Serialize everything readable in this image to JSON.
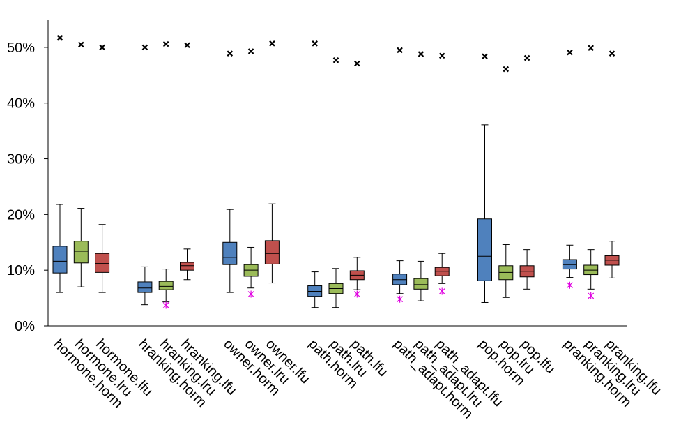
{
  "chart_data": {
    "type": "boxplot",
    "title": "",
    "xlabel": "",
    "ylabel": "",
    "ylim": [
      0,
      55
    ],
    "yticks": [
      "0%",
      "10%",
      "20%",
      "30%",
      "40%",
      "50%"
    ],
    "grid": false,
    "legend": "none",
    "series_colors": {
      "horm": "#4f81bd",
      "lru": "#9bbb59",
      "lfu": "#c0504d",
      "max_marker": "#000000",
      "outlier_marker": "#e000e0"
    },
    "categories": [
      {
        "label": "hormone.horm",
        "color_key": "horm",
        "min": 6.0,
        "q1": 9.5,
        "median": 11.6,
        "q3": 14.3,
        "max": 21.8,
        "max_marker": 51.7,
        "outlier": null
      },
      {
        "label": "hormone.lru",
        "color_key": "lru",
        "min": 7.0,
        "q1": 11.3,
        "median": 13.4,
        "q3": 15.2,
        "max": 21.1,
        "max_marker": 50.5,
        "outlier": null
      },
      {
        "label": "hormone.lfu",
        "color_key": "lfu",
        "min": 6.0,
        "q1": 9.6,
        "median": 11.2,
        "q3": 13.0,
        "max": 18.2,
        "max_marker": 50.0,
        "outlier": null
      },
      {
        "label": "hranking.horm",
        "color_key": "horm",
        "min": 3.8,
        "q1": 6.0,
        "median": 6.8,
        "q3": 7.9,
        "max": 10.6,
        "max_marker": 50.0,
        "outlier": null
      },
      {
        "label": "hranking.lru",
        "color_key": "lru",
        "min": 4.3,
        "q1": 6.5,
        "median": 7.1,
        "q3": 8.0,
        "max": 10.2,
        "max_marker": 50.6,
        "outlier": 3.7
      },
      {
        "label": "hranking.lfu",
        "color_key": "lfu",
        "min": 8.3,
        "q1": 10.0,
        "median": 10.8,
        "q3": 11.4,
        "max": 13.8,
        "max_marker": 50.4,
        "outlier": null
      },
      {
        "label": "owner.horm",
        "color_key": "horm",
        "min": 6.0,
        "q1": 11.0,
        "median": 12.3,
        "q3": 15.0,
        "max": 20.9,
        "max_marker": 48.9,
        "outlier": null
      },
      {
        "label": "owner.lru",
        "color_key": "lru",
        "min": 6.8,
        "q1": 8.9,
        "median": 10.0,
        "q3": 11.0,
        "max": 14.1,
        "max_marker": 49.3,
        "outlier": 5.7
      },
      {
        "label": "owner.lfu",
        "color_key": "lfu",
        "min": 7.7,
        "q1": 11.1,
        "median": 13.0,
        "q3": 15.3,
        "max": 21.9,
        "max_marker": 50.7,
        "outlier": null
      },
      {
        "label": "path.horm",
        "color_key": "horm",
        "min": 3.3,
        "q1": 5.3,
        "median": 6.2,
        "q3": 7.2,
        "max": 9.7,
        "max_marker": 50.7,
        "outlier": null
      },
      {
        "label": "path.lru",
        "color_key": "lru",
        "min": 3.3,
        "q1": 5.8,
        "median": 6.7,
        "q3": 7.6,
        "max": 10.3,
        "max_marker": 47.7,
        "outlier": null
      },
      {
        "label": "path.lfu",
        "color_key": "lfu",
        "min": 6.5,
        "q1": 8.3,
        "median": 9.1,
        "q3": 9.9,
        "max": 12.3,
        "max_marker": 47.1,
        "outlier": 5.7
      },
      {
        "label": "path_adapt.horm",
        "color_key": "horm",
        "min": 5.8,
        "q1": 7.4,
        "median": 8.3,
        "q3": 9.3,
        "max": 11.7,
        "max_marker": 49.5,
        "outlier": 4.8
      },
      {
        "label": "path_adapt.lru",
        "color_key": "lru",
        "min": 4.5,
        "q1": 6.6,
        "median": 7.4,
        "q3": 8.5,
        "max": 11.6,
        "max_marker": 48.8,
        "outlier": null
      },
      {
        "label": "path_adapt.lfu",
        "color_key": "lfu",
        "min": 7.6,
        "q1": 9.0,
        "median": 9.8,
        "q3": 10.5,
        "max": 13.0,
        "max_marker": 48.5,
        "outlier": 6.2
      },
      {
        "label": "pop.horm",
        "color_key": "horm",
        "min": 4.2,
        "q1": 8.1,
        "median": 12.5,
        "q3": 19.2,
        "max": 36.1,
        "max_marker": 48.4,
        "outlier": null
      },
      {
        "label": "pop.lru",
        "color_key": "lru",
        "min": 5.1,
        "q1": 8.3,
        "median": 9.6,
        "q3": 10.8,
        "max": 14.6,
        "max_marker": 46.1,
        "outlier": null
      },
      {
        "label": "pop.lfu",
        "color_key": "lfu",
        "min": 6.6,
        "q1": 8.8,
        "median": 9.8,
        "q3": 10.8,
        "max": 13.7,
        "max_marker": 48.1,
        "outlier": null
      },
      {
        "label": "pranking.horm",
        "color_key": "horm",
        "min": 8.7,
        "q1": 10.2,
        "median": 11.0,
        "q3": 11.9,
        "max": 14.5,
        "max_marker": 49.1,
        "outlier": 7.3
      },
      {
        "label": "pranking.lru",
        "color_key": "lru",
        "min": 6.6,
        "q1": 9.2,
        "median": 10.0,
        "q3": 10.9,
        "max": 13.7,
        "max_marker": 49.9,
        "outlier": 5.4
      },
      {
        "label": "pranking.lfu",
        "color_key": "lfu",
        "min": 8.6,
        "q1": 10.9,
        "median": 11.8,
        "q3": 12.6,
        "max": 15.2,
        "max_marker": 48.9,
        "outlier": null
      }
    ]
  }
}
